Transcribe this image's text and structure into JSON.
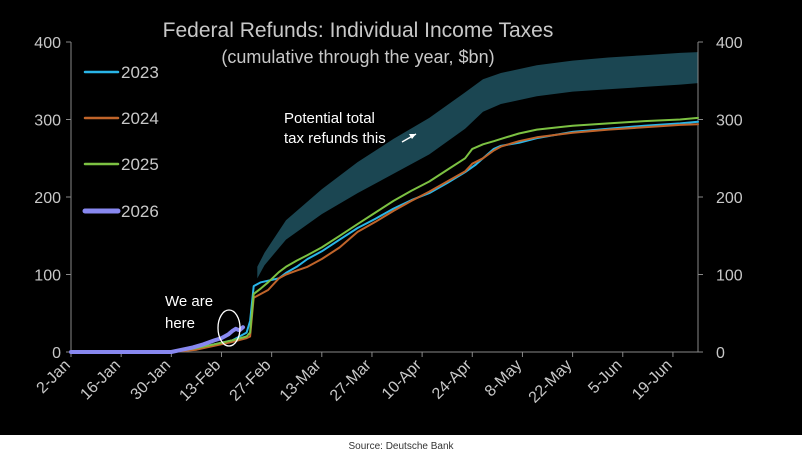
{
  "chart_data": {
    "type": "line",
    "title": "Federal Refunds: Individual Income Taxes",
    "subtitle": "(cumulative through the year, $bn)",
    "xlabel": "",
    "ylabel": "",
    "ylim": [
      0,
      400
    ],
    "yticks": [
      0,
      100,
      200,
      300,
      400
    ],
    "xlim": [
      0,
      175
    ],
    "x_unit": "day of year (0 = 2-Jan)",
    "x_tick_positions": [
      0,
      14,
      28,
      42,
      56,
      70,
      84,
      98,
      112,
      126,
      140,
      154,
      168
    ],
    "x_tick_labels": [
      "2-Jan",
      "16-Jan",
      "30-Jan",
      "13-Feb",
      "27-Feb",
      "13-Mar",
      "27-Mar",
      "10-Apr",
      "24-Apr",
      "8-May",
      "22-May",
      "5-Jun",
      "19-Jun"
    ],
    "grid": false,
    "legend_position": "top-left",
    "band": {
      "name": "Potential total tax refunds this year",
      "color": "#1c4a56",
      "x": [
        52,
        54,
        60,
        70,
        80,
        90,
        100,
        110,
        115,
        120,
        130,
        140,
        150,
        160,
        170,
        175
      ],
      "lower": [
        95,
        112,
        145,
        178,
        205,
        230,
        255,
        288,
        310,
        320,
        330,
        336,
        339,
        342,
        345,
        347
      ],
      "upper": [
        110,
        128,
        170,
        210,
        245,
        275,
        302,
        335,
        352,
        360,
        370,
        376,
        380,
        383,
        386,
        387
      ]
    },
    "series": [
      {
        "name": "2023",
        "color": "#29b5e8",
        "x": [
          0,
          28,
          35,
          40,
          45,
          49,
          50,
          51,
          53,
          55,
          58,
          60,
          63,
          66,
          70,
          75,
          80,
          85,
          90,
          95,
          100,
          105,
          110,
          113,
          115,
          118,
          120,
          125,
          130,
          140,
          150,
          160,
          170,
          175
        ],
        "y": [
          0,
          0,
          5,
          10,
          15,
          25,
          40,
          85,
          90,
          92,
          95,
          102,
          110,
          120,
          130,
          145,
          160,
          172,
          185,
          196,
          205,
          218,
          232,
          242,
          250,
          262,
          266,
          270,
          276,
          284,
          288,
          292,
          295,
          297
        ]
      },
      {
        "name": "2024",
        "color": "#c0642a",
        "x": [
          0,
          28,
          35,
          40,
          45,
          49,
          50,
          51,
          53,
          55,
          58,
          60,
          63,
          66,
          70,
          75,
          80,
          85,
          90,
          95,
          100,
          105,
          110,
          112,
          115,
          118,
          120,
          125,
          130,
          140,
          150,
          160,
          170,
          175
        ],
        "y": [
          0,
          0,
          3,
          8,
          13,
          18,
          20,
          70,
          75,
          80,
          95,
          100,
          105,
          110,
          120,
          135,
          155,
          168,
          182,
          195,
          207,
          220,
          233,
          243,
          250,
          260,
          265,
          272,
          277,
          283,
          287,
          290,
          293,
          294
        ]
      },
      {
        "name": "2025",
        "color": "#7cc142",
        "x": [
          0,
          28,
          35,
          40,
          45,
          49,
          50,
          51,
          53,
          55,
          58,
          60,
          63,
          66,
          70,
          75,
          80,
          85,
          90,
          95,
          100,
          105,
          110,
          112,
          115,
          118,
          120,
          125,
          130,
          140,
          150,
          160,
          170,
          175
        ],
        "y": [
          0,
          0,
          5,
          10,
          15,
          20,
          25,
          75,
          82,
          90,
          103,
          110,
          118,
          125,
          135,
          150,
          165,
          180,
          195,
          208,
          220,
          235,
          250,
          262,
          268,
          272,
          275,
          282,
          287,
          292,
          295,
          298,
          300,
          302
        ]
      },
      {
        "name": "2026",
        "color": "#8888f0",
        "x": [
          0,
          28,
          31,
          34,
          37,
          40,
          42,
          44,
          45,
          46,
          47,
          48
        ],
        "y": [
          0,
          0,
          3,
          6,
          10,
          15,
          18,
          23,
          27,
          30,
          28,
          32
        ]
      }
    ],
    "annotations": [
      {
        "text": "Potential total",
        "line2": "tax refunds this"
      },
      {
        "text": "We are",
        "line2": "here"
      }
    ],
    "source": "Source: Deutsche Bank"
  }
}
